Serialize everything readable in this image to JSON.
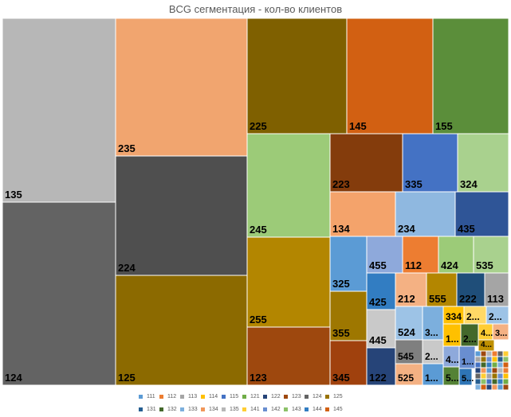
{
  "chart_data": {
    "type": "treemap",
    "title": "BCG сегментация - кол-во клиентов",
    "legend_position": "bottom",
    "legend": [
      {
        "label": "111",
        "color": "#5B9BD5"
      },
      {
        "label": "112",
        "color": "#ED7D31"
      },
      {
        "label": "113",
        "color": "#A5A5A5"
      },
      {
        "label": "114",
        "color": "#FFC000"
      },
      {
        "label": "115",
        "color": "#4472C4"
      },
      {
        "label": "121",
        "color": "#70AD47"
      },
      {
        "label": "122",
        "color": "#264478"
      },
      {
        "label": "123",
        "color": "#9E480E"
      },
      {
        "label": "124",
        "color": "#636363"
      },
      {
        "label": "125",
        "color": "#997300"
      },
      {
        "label": "131",
        "color": "#255E91"
      },
      {
        "label": "132",
        "color": "#43682B"
      },
      {
        "label": "133",
        "color": "#7CAFDD"
      },
      {
        "label": "134",
        "color": "#F1975A"
      },
      {
        "label": "135",
        "color": "#B7B7B7"
      },
      {
        "label": "141",
        "color": "#FFCD33"
      },
      {
        "label": "142",
        "color": "#698ED0"
      },
      {
        "label": "143",
        "color": "#8CC168"
      },
      {
        "label": "144",
        "color": "#327DC2"
      },
      {
        "label": "145",
        "color": "#D26012"
      }
    ],
    "tiles": [
      {
        "label": "135",
        "color": "#B7B7B7"
      },
      {
        "label": "124",
        "color": "#636363"
      },
      {
        "label": "235",
        "color": "#F1A56F"
      },
      {
        "label": "224",
        "color": "#4F4F4F"
      },
      {
        "label": "125",
        "color": "#8C6A00"
      },
      {
        "label": "225",
        "color": "#7F6000"
      },
      {
        "label": "145",
        "color": "#D26012"
      },
      {
        "label": "155",
        "color": "#5B8E3A"
      },
      {
        "label": "245",
        "color": "#9CCB78"
      },
      {
        "label": "255",
        "color": "#B38600"
      },
      {
        "label": "123",
        "color": "#9E480E"
      },
      {
        "label": "223",
        "color": "#843C0C"
      },
      {
        "label": "335",
        "color": "#4472C4"
      },
      {
        "label": "324",
        "color": "#A9D18E"
      },
      {
        "label": "134",
        "color": "#F4A36B"
      },
      {
        "label": "234",
        "color": "#8FB8E0"
      },
      {
        "label": "435",
        "color": "#2F5597"
      },
      {
        "label": "325",
        "color": "#5B9BD5"
      },
      {
        "label": "455",
        "color": "#8EA9DB"
      },
      {
        "label": "112",
        "color": "#ED7D31"
      },
      {
        "label": "424",
        "color": "#9CCB78"
      },
      {
        "label": "535",
        "color": "#A9D18E"
      },
      {
        "label": "355",
        "color": "#9E7700"
      },
      {
        "label": "345",
        "color": "#A0410D"
      },
      {
        "label": "425",
        "color": "#327DC2"
      },
      {
        "label": "212",
        "color": "#F4B183"
      },
      {
        "label": "555",
        "color": "#B38600"
      },
      {
        "label": "222",
        "color": "#1F4E79"
      },
      {
        "label": "113",
        "color": "#A5A5A5"
      },
      {
        "label": "445",
        "color": "#C9C9C9"
      },
      {
        "label": "524",
        "color": "#9DC3E6"
      },
      {
        "label": "3...",
        "color": "#7CAFDD"
      },
      {
        "label": "334",
        "color": "#FFC000"
      },
      {
        "label": "2...",
        "color": "#FFD966"
      },
      {
        "label": "2...",
        "color": "#9DC3E6"
      },
      {
        "label": "545",
        "color": "#7F7F7F"
      },
      {
        "label": "2...",
        "color": "#C9C9C9"
      },
      {
        "label": "1...",
        "color": "#FFC000"
      },
      {
        "label": "2...",
        "color": "#43682B"
      },
      {
        "label": "4...",
        "color": "#FFCD33"
      },
      {
        "label": "3...",
        "color": "#F4B183"
      },
      {
        "label": "122",
        "color": "#264478"
      },
      {
        "label": "525",
        "color": "#F4B183"
      },
      {
        "label": "1...",
        "color": "#5B9BD5"
      },
      {
        "label": "4...",
        "color": "#8EA9DB"
      },
      {
        "label": "5...",
        "color": "#548235"
      },
      {
        "label": "1...",
        "color": "#698ED0"
      },
      {
        "label": "5...",
        "color": "#2E75B6"
      },
      {
        "label": "4...",
        "color": "#BF9000"
      }
    ]
  }
}
